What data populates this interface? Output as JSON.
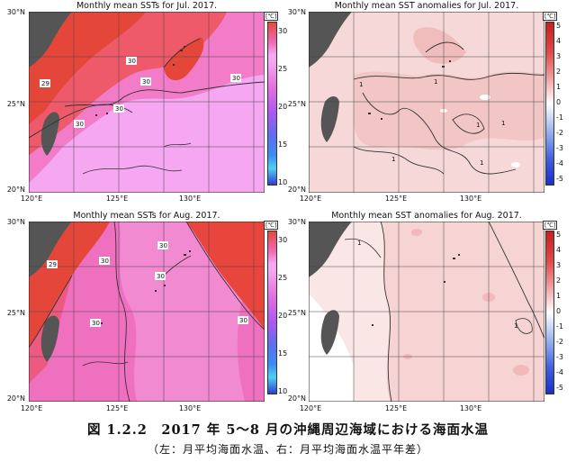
{
  "panels": [
    {
      "id": "jul-sst",
      "title": "Monthly mean SSTs for Jul. 2017.",
      "colorbar_unit": "[℃]",
      "colorbar_ticks": [
        "30",
        "25",
        "20",
        "15",
        "10"
      ],
      "contour_labels": [
        "29",
        "30",
        "30",
        "30",
        "30",
        "30"
      ],
      "lat_labels": [
        "30°N",
        "25°N",
        "20°N"
      ],
      "lon_labels": [
        "120°E",
        "125°E",
        "130°E"
      ]
    },
    {
      "id": "jul-anom",
      "title": "Monthly mean SST anomalies for Jul. 2017.",
      "colorbar_unit": "[℃]",
      "colorbar_ticks": [
        "5",
        "4",
        "3",
        "2",
        "1",
        "0",
        "-1",
        "-2",
        "-3",
        "-4",
        "-5"
      ],
      "contour_labels": [
        "1",
        "1",
        "1",
        "1",
        "1",
        "1"
      ],
      "lat_labels": [
        "30°N",
        "25°N",
        "20°N"
      ],
      "lon_labels": [
        "120°E",
        "125°E",
        "130°E"
      ]
    },
    {
      "id": "aug-sst",
      "title": "Monthly mean SSTs for Aug. 2017.",
      "colorbar_unit": "[℃]",
      "colorbar_ticks": [
        "30",
        "25",
        "20",
        "15",
        "10"
      ],
      "contour_labels": [
        "29",
        "30",
        "30",
        "30",
        "30",
        "30"
      ],
      "lat_labels": [
        "30°N",
        "25°N",
        "20°N"
      ],
      "lon_labels": [
        "120°E",
        "125°E",
        "130°E"
      ]
    },
    {
      "id": "aug-anom",
      "title": "Monthly mean SST anomalies for Aug. 2017.",
      "colorbar_unit": "[℃]",
      "colorbar_ticks": [
        "5",
        "4",
        "3",
        "2",
        "1",
        "0",
        "-1",
        "-2",
        "-3",
        "-4",
        "-5"
      ],
      "contour_labels": [
        "1",
        "1"
      ],
      "lat_labels": [
        "30°N",
        "25°N",
        "20°N"
      ],
      "lon_labels": [
        "120°E",
        "125°E",
        "130°E"
      ]
    }
  ],
  "colors": {
    "sst_warm": "#e8453c",
    "sst_mid": "#f06ab4",
    "sst_pink": "#f6a7f2",
    "anom_light": "#f8dada",
    "anom_mid": "#f0b0b0",
    "land": "#555555"
  },
  "caption": {
    "main": "図 1.2.2　2017 年 5～8 月の沖縄周辺海域における海面水温",
    "sub": "（左：月平均海面水温、右：月平均海面水温平年差）"
  }
}
